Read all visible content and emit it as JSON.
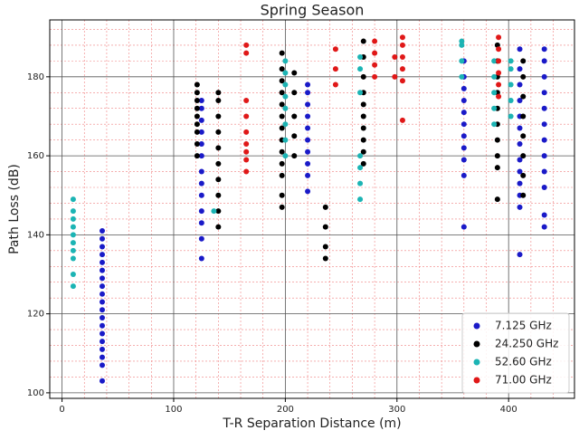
{
  "chart_data": {
    "type": "scatter",
    "title": "Spring Season",
    "x_label": "T-R Separation Distance (m)",
    "y_label": "Path Loss (dB)",
    "xlim": [
      -11,
      459
    ],
    "ylim": [
      98.6,
      194.4
    ],
    "xticks": [
      0,
      100,
      200,
      300,
      400
    ],
    "yticks": [
      100,
      120,
      140,
      160,
      180
    ],
    "minor_xticks": [
      20,
      40,
      60,
      80,
      120,
      140,
      160,
      180,
      220,
      240,
      260,
      280,
      320,
      340,
      360,
      380,
      420,
      440
    ],
    "minor_yticks": [
      104,
      108,
      112,
      116,
      124,
      128,
      132,
      136,
      144,
      148,
      152,
      156,
      164,
      168,
      172,
      176,
      184,
      188,
      192
    ],
    "grid": true,
    "minor_grid": true,
    "legend": "lower right",
    "series": [
      {
        "name": "7.125 GHz",
        "color": "#1a1ac8",
        "x": [
          36,
          36,
          36,
          36,
          36,
          36,
          36,
          36,
          36,
          36,
          36,
          36,
          36,
          36,
          36,
          36,
          36,
          36,
          36,
          125,
          125,
          125,
          125,
          125,
          125,
          125,
          125,
          125,
          125,
          125,
          125,
          125,
          220,
          220,
          220,
          220,
          220,
          220,
          220,
          220,
          220,
          220,
          360,
          360,
          360,
          360,
          360,
          360,
          360,
          360,
          360,
          360,
          360,
          410,
          410,
          410,
          410,
          410,
          410,
          410,
          410,
          410,
          410,
          410,
          410,
          410,
          432,
          432,
          432,
          432,
          432,
          432,
          432,
          432,
          432,
          432,
          432,
          432
        ],
        "values": [
          103,
          107,
          109,
          111,
          113,
          115,
          117,
          119,
          121,
          123,
          125,
          127,
          129,
          131,
          133,
          135,
          137,
          139,
          141,
          134,
          139,
          143,
          146,
          150,
          153,
          156,
          160,
          163,
          166,
          169,
          172,
          174,
          151,
          155,
          158,
          161,
          164,
          167,
          170,
          173,
          176,
          178,
          142,
          155,
          159,
          162,
          165,
          168,
          171,
          174,
          177,
          180,
          184,
          135,
          147,
          150,
          153,
          156,
          159,
          163,
          167,
          170,
          174,
          178,
          182,
          187,
          142,
          145,
          152,
          156,
          160,
          164,
          168,
          172,
          176,
          180,
          184,
          187
        ]
      },
      {
        "name": "24.250 GHz",
        "color": "#000000",
        "x": [
          121,
          121,
          121,
          121,
          121,
          121,
          121,
          121,
          121,
          140,
          140,
          140,
          140,
          140,
          140,
          140,
          140,
          140,
          140,
          197,
          197,
          197,
          197,
          197,
          197,
          197,
          197,
          197,
          197,
          197,
          197,
          197,
          208,
          208,
          208,
          208,
          208,
          236,
          236,
          236,
          236,
          270,
          270,
          270,
          270,
          270,
          270,
          270,
          270,
          270,
          270,
          390,
          390,
          390,
          390,
          390,
          390,
          390,
          390,
          390,
          390,
          413,
          413,
          413,
          413,
          413,
          413,
          413,
          413
        ],
        "values": [
          160,
          163,
          166,
          168,
          170,
          172,
          174,
          176,
          178,
          142,
          146,
          150,
          154,
          158,
          162,
          166,
          170,
          174,
          176,
          147,
          150,
          155,
          158,
          161,
          164,
          167,
          170,
          173,
          176,
          179,
          182,
          186,
          160,
          165,
          170,
          176,
          181,
          134,
          137,
          142,
          147,
          158,
          161,
          164,
          167,
          170,
          173,
          176,
          180,
          185,
          189,
          149,
          157,
          160,
          164,
          168,
          172,
          176,
          180,
          184,
          188,
          150,
          155,
          160,
          165,
          170,
          175,
          180,
          184
        ]
      },
      {
        "name": "52.60 GHz",
        "color": "#1cb4b4",
        "x": [
          10,
          10,
          10,
          10,
          10,
          10,
          10,
          10,
          10,
          10,
          136,
          200,
          200,
          200,
          200,
          200,
          200,
          200,
          200,
          267,
          267,
          267,
          267,
          267,
          267,
          267,
          358,
          358,
          358,
          358,
          387,
          387,
          387,
          387,
          387,
          402,
          402,
          402,
          402,
          402
        ],
        "values": [
          127,
          130,
          134,
          136,
          138,
          140,
          142,
          144,
          146,
          149,
          146,
          160,
          164,
          168,
          172,
          175,
          178,
          181,
          184,
          149,
          153,
          157,
          160,
          176,
          182,
          185,
          180,
          184,
          188,
          189,
          168,
          172,
          176,
          180,
          184,
          170,
          174,
          178,
          182,
          184
        ]
      },
      {
        "name": "71.00 GHz",
        "color": "#e01818",
        "x": [
          165,
          165,
          165,
          165,
          165,
          165,
          165,
          165,
          165,
          245,
          245,
          245,
          280,
          280,
          280,
          280,
          298,
          298,
          305,
          305,
          305,
          305,
          305,
          305,
          391,
          391,
          391,
          391,
          391,
          391
        ],
        "values": [
          156,
          159,
          161,
          163,
          166,
          170,
          174,
          186,
          188,
          178,
          182,
          187,
          180,
          183,
          186,
          189,
          180,
          185,
          169,
          179,
          182,
          185,
          188,
          190,
          175,
          178,
          181,
          184,
          187,
          190
        ]
      }
    ]
  }
}
